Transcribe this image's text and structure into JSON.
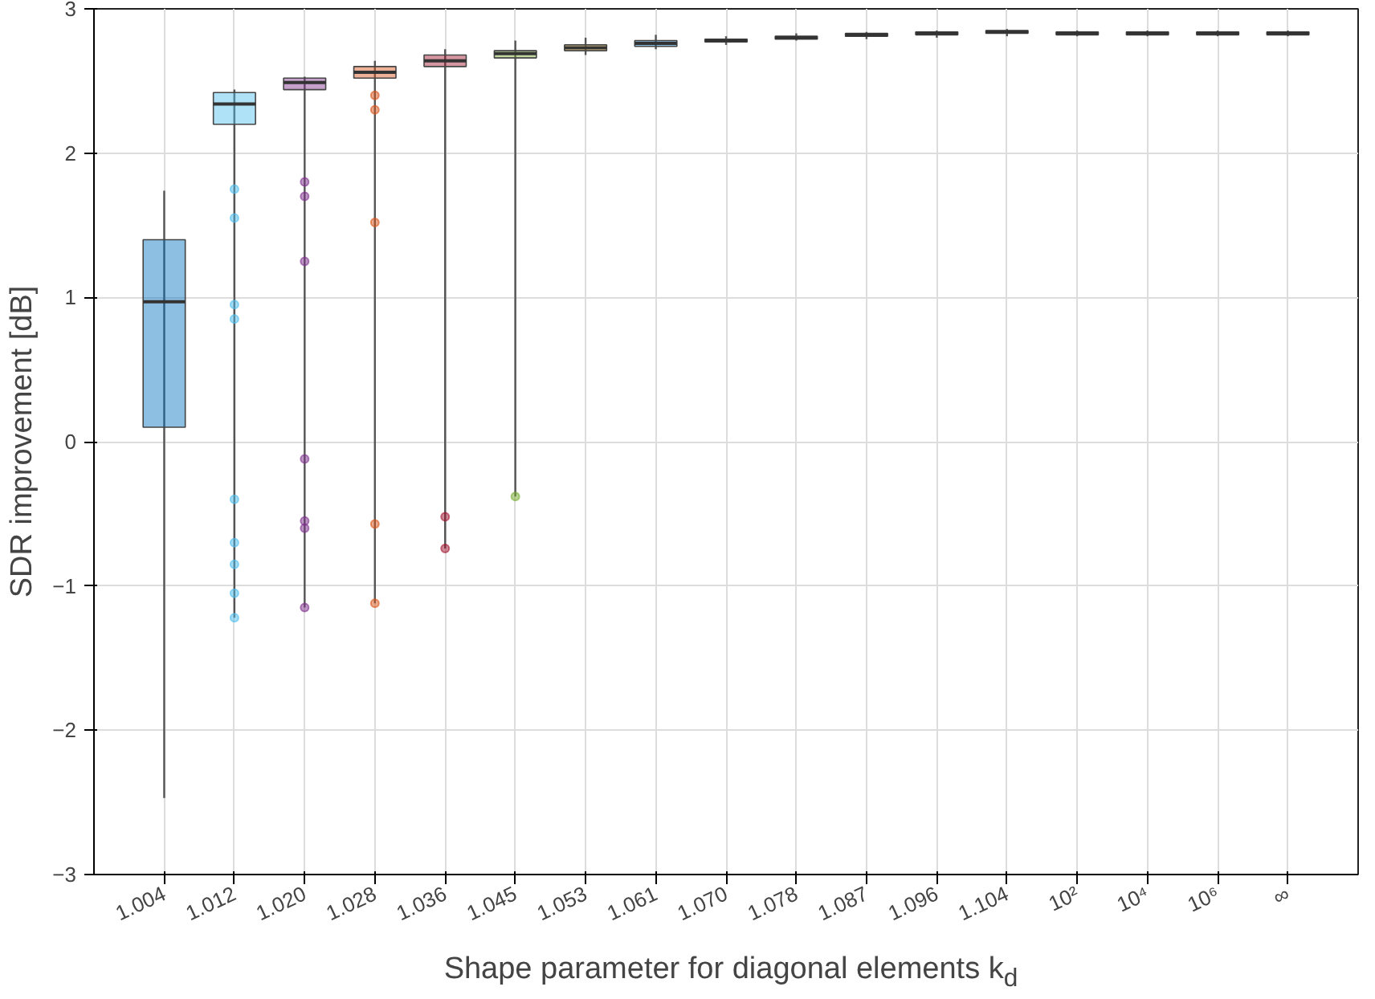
{
  "chart_data": {
    "type": "box",
    "xlabel": "Shape parameter for diagonal elements k$_{d}$",
    "ylabel": "SDR improvement [dB]",
    "categories": [
      "1.004",
      "1.012",
      "1.020",
      "1.028",
      "1.036",
      "1.045",
      "1.053",
      "1.061",
      "1.070",
      "1.078",
      "1.087",
      "1.096",
      "1.104",
      "10²",
      "10⁴",
      "10⁶",
      "∞"
    ],
    "colors": [
      "#0072bd",
      "#4dbeee",
      "#7e2f8e",
      "#d95319",
      "#a2142f",
      "#77ac30",
      "#edb120",
      "#0072bd",
      "#4dbeee",
      "#7e2f8e",
      "#d95319",
      "#a2142f",
      "#77ac30",
      "#edb120",
      "#0072bd",
      "#4dbeee",
      "#7e2f8e"
    ],
    "boxes": [
      {
        "low": -2.47,
        "q1": 0.1,
        "median": 0.97,
        "q3": 1.4,
        "high": 1.74
      },
      {
        "low": -1.22,
        "q1": 2.2,
        "median": 2.34,
        "q3": 2.42,
        "high": 2.44,
        "outliers": [
          -1.22,
          -1.05,
          -0.85,
          -0.7,
          -0.4,
          0.85,
          0.95,
          1.55,
          1.75
        ]
      },
      {
        "low": -1.15,
        "q1": 2.44,
        "median": 2.49,
        "q3": 2.52,
        "high": 2.53,
        "outliers": [
          -1.15,
          -0.6,
          -0.55,
          -0.12,
          1.25,
          1.7,
          1.8
        ]
      },
      {
        "low": -1.12,
        "q1": 2.52,
        "median": 2.56,
        "q3": 2.6,
        "high": 2.64,
        "outliers": [
          -1.12,
          -0.57,
          1.52,
          2.3,
          2.4
        ]
      },
      {
        "low": -0.74,
        "q1": 2.6,
        "median": 2.64,
        "q3": 2.68,
        "high": 2.72,
        "outliers": [
          -0.74,
          -0.52
        ]
      },
      {
        "low": -0.38,
        "q1": 2.66,
        "median": 2.69,
        "q3": 2.71,
        "high": 2.78,
        "outliers": [
          -0.38
        ]
      },
      {
        "low": 2.68,
        "q1": 2.71,
        "median": 2.73,
        "q3": 2.75,
        "high": 2.8
      },
      {
        "low": 2.72,
        "q1": 2.74,
        "median": 2.76,
        "q3": 2.78,
        "high": 2.82
      },
      {
        "low": 2.75,
        "q1": 2.77,
        "median": 2.78,
        "q3": 2.79,
        "high": 2.81
      },
      {
        "low": 2.78,
        "q1": 2.79,
        "median": 2.8,
        "q3": 2.81,
        "high": 2.83
      },
      {
        "low": 2.79,
        "q1": 2.81,
        "median": 2.82,
        "q3": 2.83,
        "high": 2.84
      },
      {
        "low": 2.8,
        "q1": 2.82,
        "median": 2.83,
        "q3": 2.84,
        "high": 2.85
      },
      {
        "low": 2.81,
        "q1": 2.83,
        "median": 2.84,
        "q3": 2.85,
        "high": 2.86
      },
      {
        "low": 2.81,
        "q1": 2.82,
        "median": 2.83,
        "q3": 2.84,
        "high": 2.85
      },
      {
        "low": 2.81,
        "q1": 2.82,
        "median": 2.83,
        "q3": 2.84,
        "high": 2.85
      },
      {
        "low": 2.81,
        "q1": 2.82,
        "median": 2.83,
        "q3": 2.84,
        "high": 2.85
      },
      {
        "low": 2.81,
        "q1": 2.82,
        "median": 2.83,
        "q3": 2.84,
        "high": 2.85
      }
    ],
    "ylim": [
      -3,
      3
    ],
    "yticks": [
      -3,
      -2,
      -1,
      0,
      1,
      2,
      3
    ],
    "grid": true
  }
}
